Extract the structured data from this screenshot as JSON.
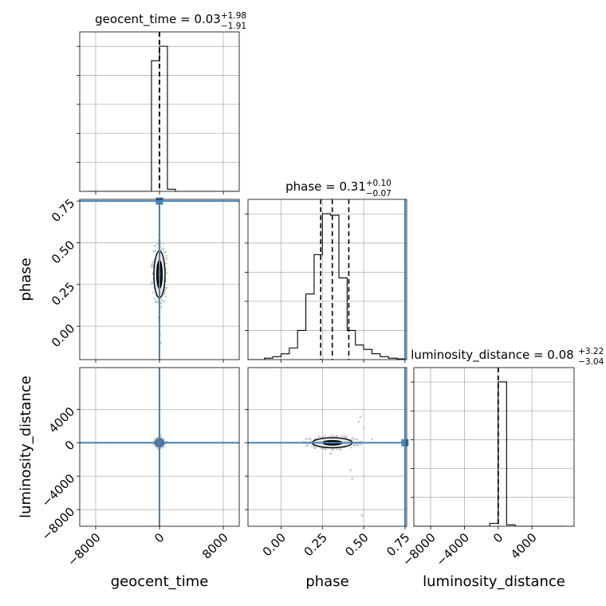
{
  "chart_data": {
    "type": "corner",
    "parameters": [
      "geocent_time",
      "phase",
      "luminosity_distance"
    ],
    "injection_color": "#4682b4",
    "grid": true,
    "diagonal": [
      {
        "param": "geocent_time",
        "title": {
          "prefix": "geocent_time = 0.03",
          "plus": "+1.98",
          "minus": "−1.91"
        },
        "quantile_lines": [
          -1.88,
          0.03,
          2.01
        ],
        "hist_edges": [
          -9000,
          -8000,
          -7000,
          -6000,
          -5000,
          -4000,
          -3000,
          -2000,
          -1000,
          0,
          1000,
          2000,
          3000,
          4000,
          5000,
          6000,
          7000,
          8000,
          9000,
          10000
        ],
        "hist_counts": [
          0,
          0,
          0,
          0,
          0,
          0,
          0,
          0,
          0.9,
          1.0,
          0.015,
          0,
          0,
          0,
          0,
          0,
          0,
          0,
          0
        ]
      },
      {
        "param": "phase",
        "title": {
          "prefix": "phase = 0.31",
          "plus": "+0.10",
          "minus": "−0.07"
        },
        "quantile_lines": [
          0.24,
          0.31,
          0.41
        ],
        "injection": 0.75,
        "hist_edges": [
          -0.2,
          -0.15,
          -0.1,
          -0.05,
          0.0,
          0.05,
          0.1,
          0.15,
          0.2,
          0.25,
          0.3,
          0.35,
          0.4,
          0.45,
          0.5,
          0.55,
          0.6,
          0.65,
          0.7,
          0.75,
          0.8
        ],
        "hist_counts": [
          0,
          0,
          0.01,
          0.02,
          0.04,
          0.08,
          0.2,
          0.45,
          0.72,
          1.0,
          0.99,
          0.56,
          0.2,
          0.1,
          0.07,
          0.04,
          0.02,
          0.01,
          0.005,
          0
        ]
      },
      {
        "param": "luminosity_distance",
        "title": {
          "prefix": "luminosity_distance = 0.08",
          "plus": "+3.22",
          "minus": "−3.04"
        },
        "quantile_lines": [
          -2.96,
          0.08,
          3.3
        ],
        "hist_edges": [
          -11000,
          -10000,
          -9000,
          -8000,
          -7000,
          -6000,
          -5000,
          -4000,
          -3000,
          -2000,
          -1000,
          0,
          1000,
          2000,
          3000,
          4000,
          5000,
          6000,
          7000,
          8000
        ],
        "hist_counts": [
          0,
          0,
          0,
          0,
          0,
          0,
          0,
          0,
          0,
          0,
          0.02,
          1.0,
          0.01,
          0,
          0,
          0,
          0,
          0,
          0
        ]
      }
    ],
    "pairs": [
      {
        "x": "geocent_time",
        "y": "phase",
        "injection": [
          0,
          0.75
        ],
        "center": [
          0,
          0.31
        ],
        "contours": [
          {
            "rx": 350,
            "ry": 0.085
          },
          {
            "rx": 700,
            "ry": 0.14
          }
        ],
        "outliers": [
          [
            -100,
            0.05
          ],
          [
            150,
            -0.1
          ],
          [
            -80,
            0.55
          ],
          [
            600,
            0.2
          ],
          [
            -500,
            0.45
          ],
          [
            50,
            -0.05
          ]
        ]
      },
      {
        "x": "geocent_time",
        "y": "luminosity_distance",
        "injection": [
          0,
          0
        ],
        "center": [
          0,
          0
        ],
        "contours": [
          {
            "rx": 250,
            "ry": 220
          },
          {
            "rx": 500,
            "ry": 450
          }
        ],
        "outliers": [
          [
            150,
            900
          ],
          [
            -200,
            -700
          ],
          [
            900,
            100
          ]
        ]
      },
      {
        "x": "phase",
        "y": "luminosity_distance",
        "injection": [
          0.75,
          0
        ],
        "center": [
          0.31,
          0
        ],
        "contours": [
          {
            "rx": 0.06,
            "ry": 280
          },
          {
            "rx": 0.12,
            "ry": 600
          }
        ],
        "outliers": [
          [
            0.47,
            2500
          ],
          [
            0.48,
            3100
          ],
          [
            0.5,
            1800
          ],
          [
            0.42,
            -3300
          ],
          [
            0.43,
            -4300
          ],
          [
            0.49,
            -8700
          ],
          [
            0.3,
            -1300
          ],
          [
            0.55,
            400
          ],
          [
            0.15,
            0
          ]
        ]
      }
    ],
    "axes": {
      "geocent_time": {
        "range": [
          -10000,
          10000
        ],
        "ticks": [
          -8000,
          0,
          8000
        ],
        "tick_labels": [
          "−8000",
          "0",
          "8000"
        ],
        "label": "geocent_time"
      },
      "phase": {
        "range": [
          -0.2,
          0.76
        ],
        "ticks": [
          0,
          0.25,
          0.5,
          0.75
        ],
        "tick_labels": [
          "0.00",
          "0.25",
          "0.50",
          "0.75"
        ],
        "label": "phase"
      },
      "luminosity_distance": {
        "range": [
          -10000,
          9000
        ],
        "ticks": [
          -8000,
          -4000,
          0,
          4000
        ],
        "tick_labels": [
          "−8000",
          "−4000",
          "0",
          "4000"
        ],
        "label": "luminosity_distance"
      }
    }
  }
}
